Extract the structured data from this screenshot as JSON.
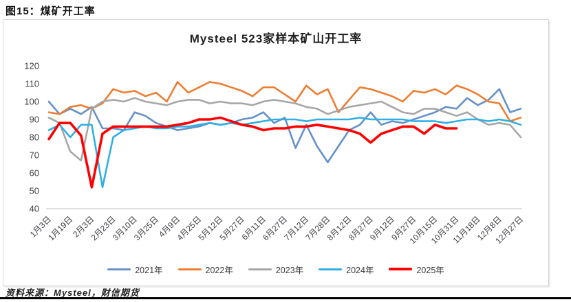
{
  "page": {
    "figure_caption": "图15：煤矿开工率",
    "footer": "资料来源：Mysteel，财信期货"
  },
  "chart_data": {
    "type": "line",
    "title": "Mysteel 523家样本矿山开工率",
    "ylabel": "",
    "xlabel": "",
    "ylim": [
      40,
      120
    ],
    "y_ticks": [
      120,
      110,
      100,
      90,
      80,
      70,
      60,
      50,
      40
    ],
    "grid": false,
    "legend_position": "bottom",
    "n_points": 45,
    "label_every": 2,
    "x_tick_labels": [
      "1月3日",
      "1月19日",
      "2月3日",
      "2月23日",
      "3月10日",
      "3月25日",
      "4月9日",
      "4月25日",
      "5月12日",
      "5月27日",
      "6月11日",
      "6月27日",
      "7月12日",
      "7月28日",
      "8月12日",
      "8月27日",
      "9月12日",
      "9月27日",
      "10月15日",
      "10月31日",
      "11月18日",
      "12月8日",
      "12月27日"
    ],
    "axis_color": "#c9c9c9",
    "series": [
      {
        "name": "2021年",
        "color": "#6491C8",
        "width": 2.6,
        "values": [
          100,
          93,
          96,
          93,
          97,
          85,
          85,
          84,
          94,
          92,
          88,
          86,
          84,
          85,
          86,
          88,
          87,
          88,
          90,
          91,
          94,
          88,
          91,
          74,
          87,
          75,
          66,
          75,
          84,
          87,
          94,
          87,
          89,
          88,
          90,
          92,
          94,
          97,
          96,
          102,
          98,
          101,
          107,
          94,
          96
        ]
      },
      {
        "name": "2022年",
        "color": "#ED7D31",
        "width": 2.6,
        "values": [
          94,
          93,
          97,
          98,
          96,
          99,
          107,
          105,
          106,
          103,
          105,
          100,
          111,
          105,
          108,
          111,
          110,
          108,
          106,
          103,
          108,
          108,
          104,
          100,
          109,
          104,
          107,
          94,
          101,
          108,
          107,
          105,
          103,
          100,
          106,
          105,
          107,
          104,
          109,
          107,
          104,
          100,
          99,
          89,
          91
        ]
      },
      {
        "name": "2023年",
        "color": "#A6A6A6",
        "width": 2.6,
        "values": [
          91,
          88,
          72,
          67,
          96,
          100,
          101,
          100,
          102,
          100,
          99,
          98,
          100,
          101,
          101,
          99,
          100,
          99,
          99,
          98,
          100,
          101,
          100,
          99,
          97,
          96,
          93,
          95,
          97,
          98,
          99,
          100,
          97,
          94,
          93,
          96,
          96,
          94,
          92,
          94,
          90,
          87,
          88,
          87,
          80
        ]
      },
      {
        "name": "2024年",
        "color": "#2FAFE4",
        "width": 2.6,
        "values": [
          84,
          87,
          80,
          87,
          87,
          52,
          80,
          84,
          85,
          86,
          85,
          85,
          86,
          86,
          87,
          88,
          87,
          88,
          87,
          88,
          89,
          90,
          90,
          90,
          89,
          90,
          90,
          90,
          90,
          91,
          90,
          90,
          90,
          90,
          89,
          89,
          89,
          88,
          89,
          90,
          90,
          89,
          90,
          89,
          87
        ]
      },
      {
        "name": "2025年",
        "color": "#FF0000",
        "width": 3.6,
        "values": [
          79,
          88,
          88,
          81,
          52,
          82,
          86,
          86,
          86,
          86,
          86,
          86,
          87,
          88,
          90,
          90,
          91,
          89,
          87,
          86,
          84,
          85,
          85,
          86,
          86,
          87,
          86,
          85,
          84,
          82,
          77,
          82,
          84,
          86,
          86,
          82,
          87,
          85,
          85,
          null,
          null,
          null,
          null,
          null,
          null
        ]
      }
    ]
  }
}
